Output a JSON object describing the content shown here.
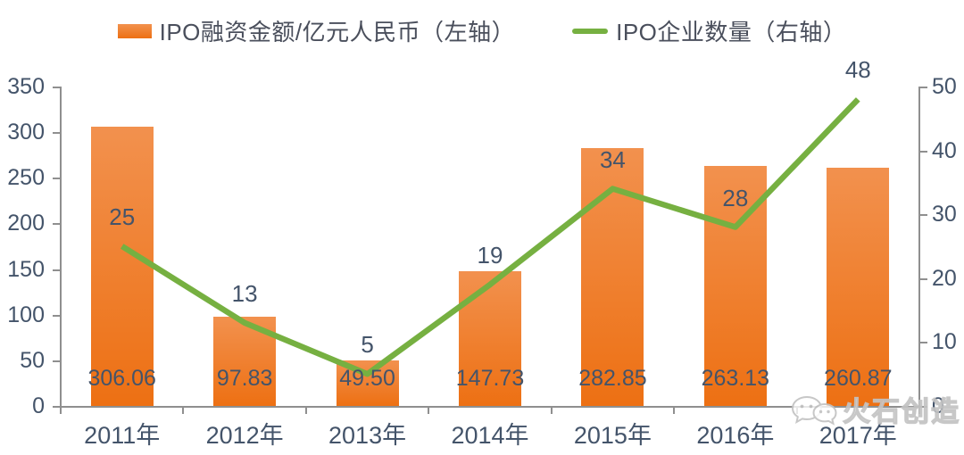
{
  "legend": {
    "items": [
      {
        "label": "IPO融资金额/亿元人民币（左轴）"
      },
      {
        "label": "IPO企业数量（右轴）"
      }
    ]
  },
  "colors": {
    "bar_top": "#F2914E",
    "bar_bottom": "#ED7013",
    "line": "#76B041",
    "label_text": "#44546A",
    "axis": "#8F8F8F"
  },
  "chart_data": {
    "type": "bar",
    "subtype": "bar+line dual axis",
    "categories": [
      "2011年",
      "2012年",
      "2013年",
      "2014年",
      "2015年",
      "2016年",
      "2017年"
    ],
    "series": [
      {
        "name": "IPO融资金额/亿元人民币（左轴）",
        "type": "bar",
        "axis": "left",
        "values": [
          306.06,
          97.83,
          49.5,
          147.73,
          282.85,
          263.13,
          260.87
        ],
        "labels": [
          "306.06",
          "97.83",
          "49.50",
          "147.73",
          "282.85",
          "263.13",
          "260.87"
        ]
      },
      {
        "name": "IPO企业数量（右轴）",
        "type": "line",
        "axis": "right",
        "values": [
          25,
          13,
          5,
          19,
          34,
          28,
          48
        ],
        "labels": [
          "25",
          "13",
          "5",
          "19",
          "34",
          "28",
          "48"
        ]
      }
    ],
    "left_axis": {
      "min": 0,
      "max": 350,
      "step": 50,
      "tick_labels": [
        "0",
        "50",
        "100",
        "150",
        "200",
        "250",
        "300",
        "350"
      ]
    },
    "right_axis": {
      "min": 0,
      "max": 50,
      "step": 10,
      "tick_labels": [
        "0",
        "10",
        "20",
        "30",
        "40",
        "50"
      ]
    },
    "grid": false,
    "legend_position": "top"
  },
  "watermark": {
    "text": "火石创造"
  }
}
